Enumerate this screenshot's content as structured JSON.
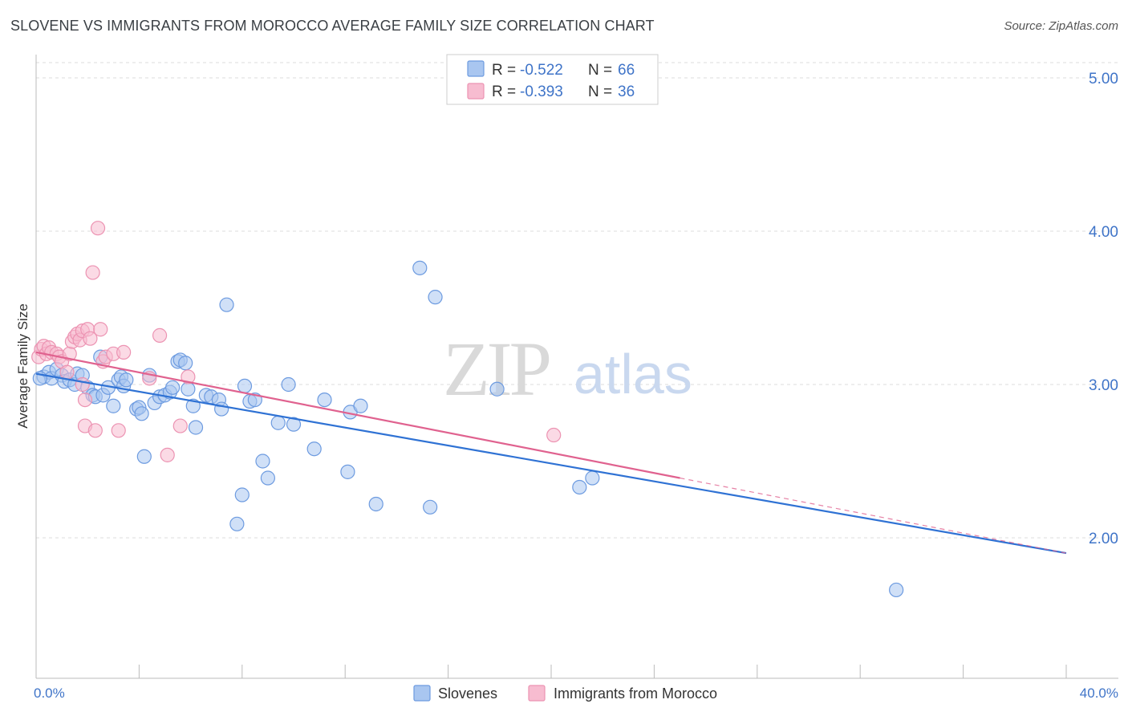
{
  "title": "SLOVENE VS IMMIGRANTS FROM MOROCCO AVERAGE FAMILY SIZE CORRELATION CHART",
  "source": "Source: ZipAtlas.com",
  "watermark": {
    "zip": "ZIP",
    "atlas": "atlas"
  },
  "colors": {
    "slovenes_fill": "#a9c6f0",
    "slovenes_stroke": "#6d9be0",
    "slovenes_line": "#2f72d4",
    "morocco_fill": "#f7bcd0",
    "morocco_stroke": "#ec93b2",
    "morocco_line": "#e0628f",
    "tick_label": "#3f74c8",
    "grid": "#dddddd"
  },
  "legend": {
    "rows": [
      {
        "r_label": "R = ",
        "r_value": "-0.522",
        "n_label": "N = ",
        "n_value": "66"
      },
      {
        "r_label": "R = ",
        "r_value": "-0.393",
        "n_label": "N = ",
        "n_value": "36"
      }
    ]
  },
  "chart_data": {
    "type": "scatter",
    "title": "SLOVENE VS IMMIGRANTS FROM MOROCCO AVERAGE FAMILY SIZE CORRELATION CHART",
    "xlabel": "",
    "ylabel": "Average Family Size",
    "xlim": [
      0,
      40
    ],
    "ylim": [
      1.2,
      5.1
    ],
    "x_tick_labels": [
      {
        "value": 0,
        "label": "0.0%"
      },
      {
        "value": 40,
        "label": "40.0%"
      }
    ],
    "y_ticks": [
      {
        "value": 5,
        "label": "5.00"
      },
      {
        "value": 4,
        "label": "4.00"
      },
      {
        "value": 3,
        "label": "3.00"
      },
      {
        "value": 2,
        "label": "2.00"
      }
    ],
    "grid": true,
    "legend_position": "top-center",
    "series": [
      {
        "name": "Slovenes",
        "points": [
          [
            0.3,
            3.05
          ],
          [
            0.5,
            3.08
          ],
          [
            0.6,
            3.04
          ],
          [
            0.8,
            3.1
          ],
          [
            1.0,
            3.06
          ],
          [
            1.1,
            3.02
          ],
          [
            1.3,
            3.03
          ],
          [
            1.5,
            3.0
          ],
          [
            1.6,
            3.07
          ],
          [
            1.8,
            3.06
          ],
          [
            2.0,
            2.98
          ],
          [
            2.2,
            2.93
          ],
          [
            2.3,
            2.92
          ],
          [
            2.5,
            3.18
          ],
          [
            2.6,
            2.93
          ],
          [
            2.8,
            2.98
          ],
          [
            3.0,
            2.86
          ],
          [
            3.2,
            3.03
          ],
          [
            3.3,
            3.05
          ],
          [
            3.4,
            2.99
          ],
          [
            3.5,
            3.03
          ],
          [
            3.9,
            2.84
          ],
          [
            4.0,
            2.85
          ],
          [
            4.1,
            2.81
          ],
          [
            4.2,
            2.53
          ],
          [
            4.4,
            3.06
          ],
          [
            4.6,
            2.88
          ],
          [
            4.8,
            2.92
          ],
          [
            5.0,
            2.93
          ],
          [
            5.2,
            2.95
          ],
          [
            5.3,
            2.98
          ],
          [
            5.5,
            3.15
          ],
          [
            5.6,
            3.16
          ],
          [
            5.8,
            3.14
          ],
          [
            5.9,
            2.97
          ],
          [
            6.1,
            2.86
          ],
          [
            6.2,
            2.72
          ],
          [
            6.6,
            2.93
          ],
          [
            6.8,
            2.92
          ],
          [
            7.1,
            2.9
          ],
          [
            7.2,
            2.84
          ],
          [
            7.4,
            3.52
          ],
          [
            7.8,
            2.09
          ],
          [
            8.0,
            2.28
          ],
          [
            8.1,
            2.99
          ],
          [
            8.3,
            2.89
          ],
          [
            8.5,
            2.9
          ],
          [
            8.8,
            2.5
          ],
          [
            9.0,
            2.39
          ],
          [
            9.4,
            2.75
          ],
          [
            9.8,
            3.0
          ],
          [
            10.0,
            2.74
          ],
          [
            10.8,
            2.58
          ],
          [
            11.2,
            2.9
          ],
          [
            12.1,
            2.43
          ],
          [
            12.2,
            2.82
          ],
          [
            12.6,
            2.86
          ],
          [
            13.2,
            2.22
          ],
          [
            14.9,
            3.76
          ],
          [
            15.3,
            2.2
          ],
          [
            15.5,
            3.57
          ],
          [
            17.9,
            2.97
          ],
          [
            21.1,
            2.33
          ],
          [
            21.6,
            2.39
          ],
          [
            33.4,
            1.66
          ],
          [
            0.15,
            3.04
          ]
        ],
        "trend": {
          "x": [
            0,
            40
          ],
          "y": [
            3.07,
            1.9
          ]
        }
      },
      {
        "name": "Immigrants from Morocco",
        "points": [
          [
            0.1,
            3.18
          ],
          [
            0.2,
            3.23
          ],
          [
            0.3,
            3.25
          ],
          [
            0.4,
            3.2
          ],
          [
            0.5,
            3.24
          ],
          [
            0.6,
            3.21
          ],
          [
            0.8,
            3.2
          ],
          [
            0.9,
            3.18
          ],
          [
            1.0,
            3.15
          ],
          [
            1.2,
            3.08
          ],
          [
            1.3,
            3.2
          ],
          [
            1.4,
            3.28
          ],
          [
            1.5,
            3.31
          ],
          [
            1.6,
            3.33
          ],
          [
            1.7,
            3.29
          ],
          [
            1.8,
            3.0
          ],
          [
            1.8,
            3.35
          ],
          [
            1.9,
            2.9
          ],
          [
            1.9,
            2.73
          ],
          [
            2.0,
            3.36
          ],
          [
            2.1,
            3.3
          ],
          [
            2.2,
            3.73
          ],
          [
            2.3,
            2.7
          ],
          [
            2.4,
            4.02
          ],
          [
            2.5,
            3.36
          ],
          [
            2.6,
            3.15
          ],
          [
            2.7,
            3.18
          ],
          [
            3.0,
            3.2
          ],
          [
            3.2,
            2.7
          ],
          [
            3.4,
            3.21
          ],
          [
            4.4,
            3.04
          ],
          [
            4.8,
            3.32
          ],
          [
            5.1,
            2.54
          ],
          [
            5.6,
            2.73
          ],
          [
            5.9,
            3.05
          ],
          [
            20.1,
            2.67
          ]
        ],
        "trend": {
          "x": [
            0,
            25
          ],
          "y": [
            3.21,
            2.39
          ]
        },
        "trend_dashed_extension": {
          "x": [
            25,
            40
          ],
          "y": [
            2.39,
            1.9
          ]
        }
      }
    ]
  }
}
